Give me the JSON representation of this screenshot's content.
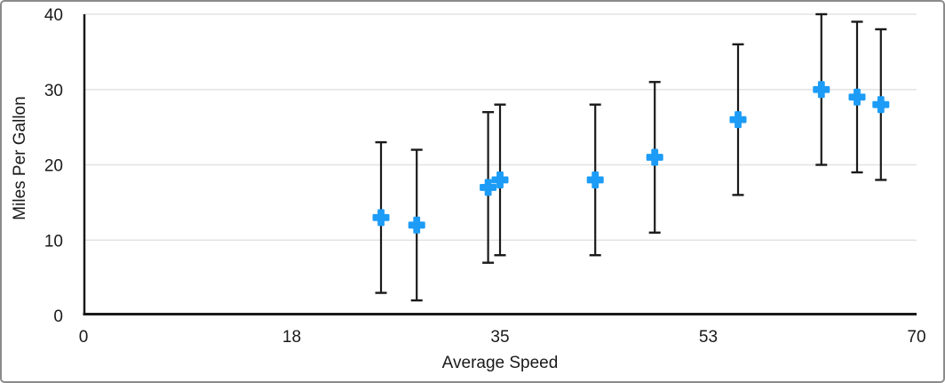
{
  "figure": {
    "border_color": "#8b8b8b",
    "background": "#ffffff"
  },
  "chart_data": {
    "type": "scatter",
    "title": "",
    "xlabel": "Average Speed",
    "ylabel": "Miles Per Gallon",
    "xlim": [
      0,
      70
    ],
    "ylim": [
      0,
      40
    ],
    "xticks": {
      "positions": [
        0,
        17.5,
        35,
        52.5,
        70
      ],
      "labels": [
        "0",
        "18",
        "35",
        "53",
        "70"
      ]
    },
    "yticks": {
      "positions": [
        0,
        10,
        20,
        30,
        40
      ],
      "labels": [
        "0",
        "10",
        "20",
        "30",
        "40"
      ]
    },
    "grid": "horizontal-only",
    "legend": "none",
    "colors": {
      "axis": "#1a1a1a",
      "grid": "#e3e3e3",
      "tick_text": "#1a1a1a"
    },
    "series": [
      {
        "marker": "plus",
        "marker_color": "#1c9cf7",
        "error_color": "#1a1a1a",
        "error_bars": "y symmetric",
        "points": [
          {
            "x": 25,
            "y": 13,
            "error": 10
          },
          {
            "x": 28,
            "y": 12,
            "error": 10
          },
          {
            "x": 34,
            "y": 17,
            "error": 10
          },
          {
            "x": 35,
            "y": 18,
            "error": 10
          },
          {
            "x": 43,
            "y": 18,
            "error": 10
          },
          {
            "x": 48,
            "y": 21,
            "error": 10
          },
          {
            "x": 55,
            "y": 26,
            "error": 10
          },
          {
            "x": 62,
            "y": 30,
            "error": 10
          },
          {
            "x": 65,
            "y": 29,
            "error": 10
          },
          {
            "x": 67,
            "y": 28,
            "error": 10
          }
        ]
      }
    ]
  }
}
